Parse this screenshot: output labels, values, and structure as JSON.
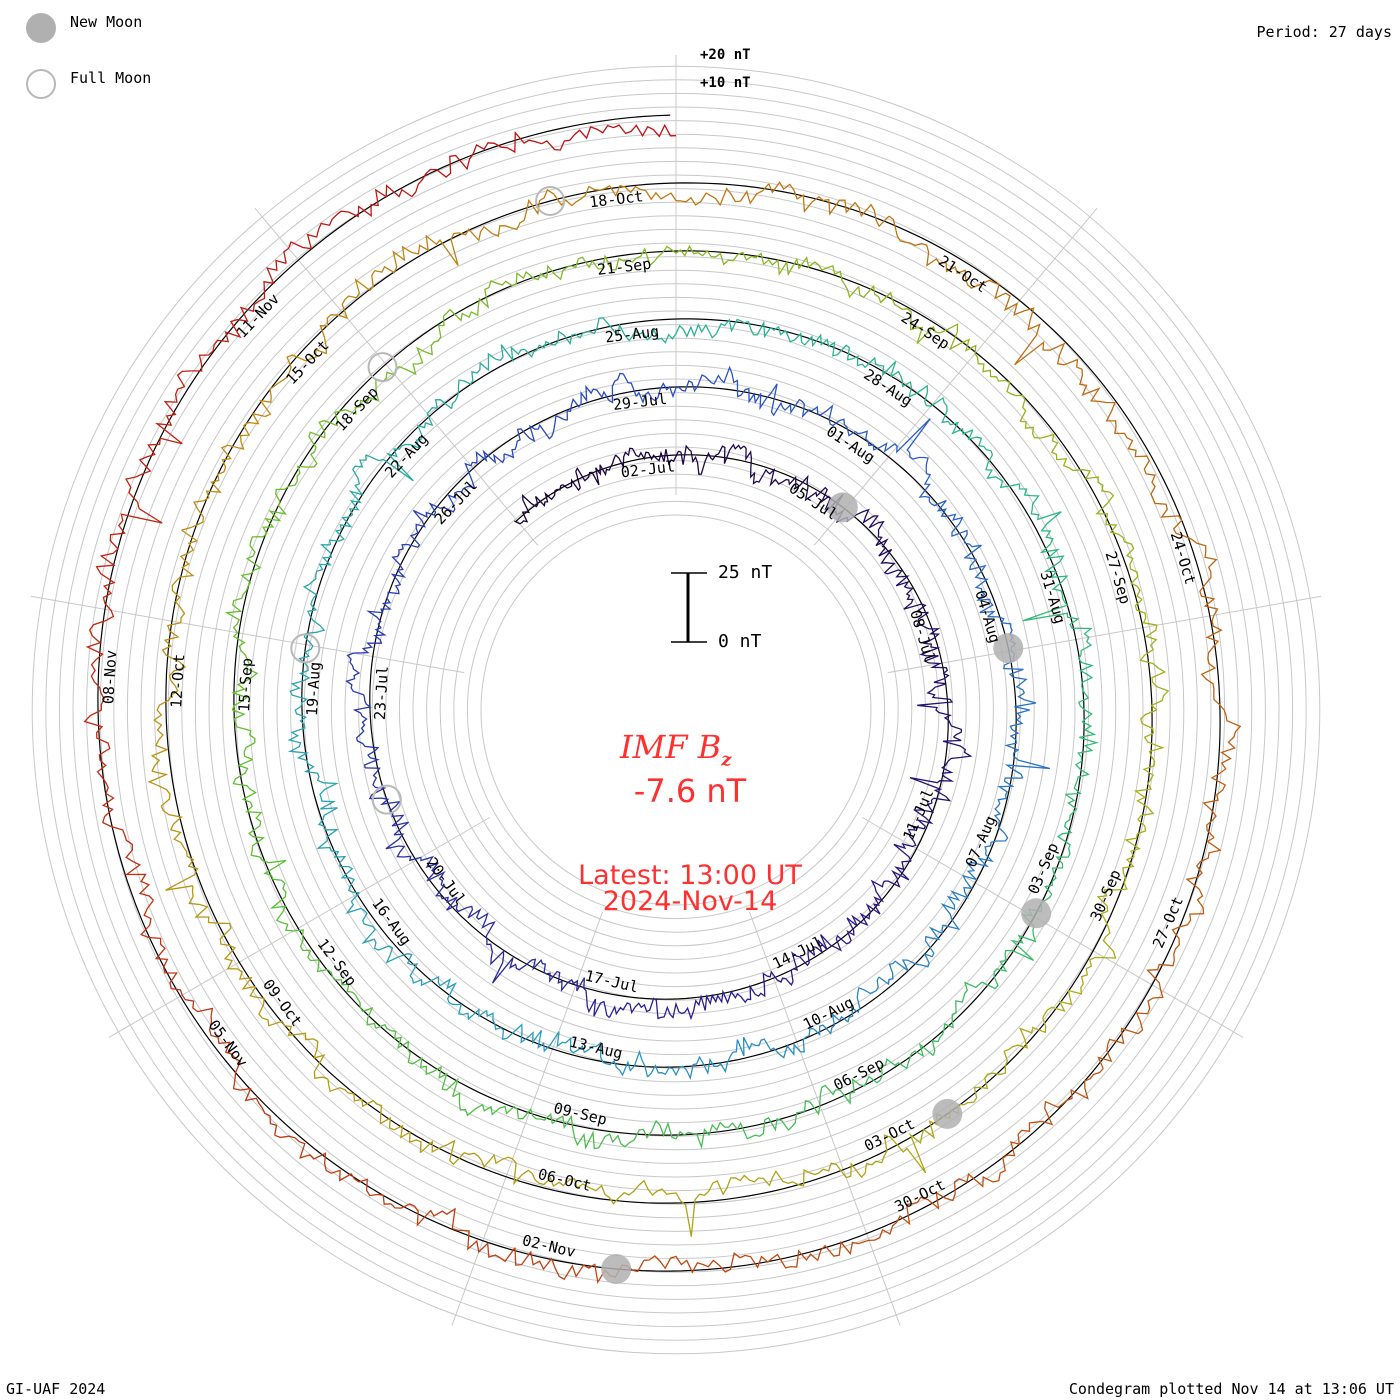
{
  "legend": {
    "new_moon": "New Moon",
    "full_moon": "Full Moon"
  },
  "period_label": "Period: 27 days",
  "credit": "GI-UAF 2024",
  "plotted": "Condegram plotted Nov 14 at 13:06 UT",
  "center": {
    "title_main": "IMF B",
    "title_sub": "z",
    "value": "-7.6 nT",
    "latest": "Latest: 13:00 UT",
    "date": "2024-Nov-14"
  },
  "scale_bar": {
    "top": "25 nT",
    "bottom": "0 nT"
  },
  "chart_data": {
    "type": "line",
    "subtype": "spiral condegram",
    "title": "IMF Bz",
    "units": "nT",
    "period_days": 27,
    "start": "2024-06-29",
    "end": "2024-11-14T13:00",
    "latest_value": -7.6,
    "ring_labels": [
      "+20 nT",
      "+10 nT"
    ],
    "ring_values": [
      20,
      10
    ],
    "grid_step_nT": 5,
    "tick_labels": [
      "02-Jul",
      "05-Jul",
      "08-Jul",
      "11-Jul",
      "14-Jul",
      "17-Jul",
      "20-Jul",
      "23-Jul",
      "26-Jul",
      "29-Jul",
      "01-Aug",
      "04-Aug",
      "07-Aug",
      "10-Aug",
      "13-Aug",
      "16-Aug",
      "19-Aug",
      "22-Aug",
      "25-Aug",
      "28-Aug",
      "31-Aug",
      "03-Sep",
      "06-Sep",
      "09-Sep",
      "12-Sep",
      "15-Sep",
      "18-Sep",
      "21-Sep",
      "24-Sep",
      "27-Sep",
      "30-Sep",
      "03-Oct",
      "06-Oct",
      "09-Oct",
      "12-Oct",
      "15-Oct",
      "18-Oct",
      "21-Oct",
      "24-Oct",
      "27-Oct",
      "30-Oct",
      "02-Nov",
      "05-Nov",
      "08-Nov",
      "11-Nov"
    ],
    "new_moons": [
      "2024-07-05",
      "2024-08-04",
      "2024-09-03",
      "2024-10-02",
      "2024-11-01"
    ],
    "full_moons": [
      "2024-07-21",
      "2024-08-19",
      "2024-09-18",
      "2024-10-17"
    ],
    "colors": [
      "#1a0033",
      "#2a1a8c",
      "#2a50c8",
      "#2a9cc0",
      "#2ab88a",
      "#5cc030",
      "#a8b018",
      "#c08a10",
      "#c05010",
      "#c01010"
    ]
  }
}
